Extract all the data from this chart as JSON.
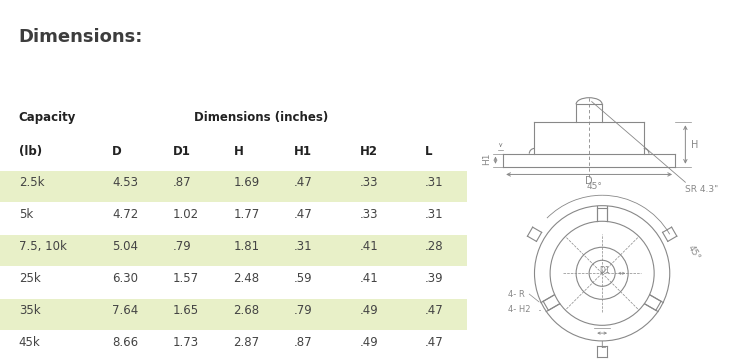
{
  "title": "Dimensions:",
  "title_color": "#3d3d3d",
  "top_line_color": "#8db31b",
  "background_color": "#ffffff",
  "col_headers": [
    "D",
    "D1",
    "H",
    "H1",
    "H2",
    "L"
  ],
  "rows": [
    {
      "cap": "2.5k",
      "D": "4.53",
      "D1": ".87",
      "H": "1.69",
      "H1": ".47",
      "H2": ".33",
      "L": ".31",
      "highlight": true
    },
    {
      "cap": "5k",
      "D": "4.72",
      "D1": "1.02",
      "H": "1.77",
      "H1": ".47",
      "H2": ".33",
      "L": ".31",
      "highlight": false
    },
    {
      "cap": "7.5, 10k",
      "D": "5.04",
      "D1": ".79",
      "H": "1.81",
      "H1": ".31",
      "H2": ".41",
      "L": ".28",
      "highlight": true
    },
    {
      "cap": "25k",
      "D": "6.30",
      "D1": "1.57",
      "H": "2.48",
      "H1": ".59",
      "H2": ".41",
      "L": ".39",
      "highlight": false
    },
    {
      "cap": "35k",
      "D": "7.64",
      "D1": "1.65",
      "H": "2.68",
      "H1": ".79",
      "H2": ".49",
      "L": ".47",
      "highlight": true
    },
    {
      "cap": "45k",
      "D": "8.66",
      "D1": "1.73",
      "H": "2.87",
      "H1": ".87",
      "H2": ".49",
      "L": ".47",
      "highlight": false
    }
  ],
  "highlight_color": "#e8f0c8",
  "text_color": "#444444",
  "header_color": "#222222",
  "lc": "#888888",
  "lw": 0.8
}
